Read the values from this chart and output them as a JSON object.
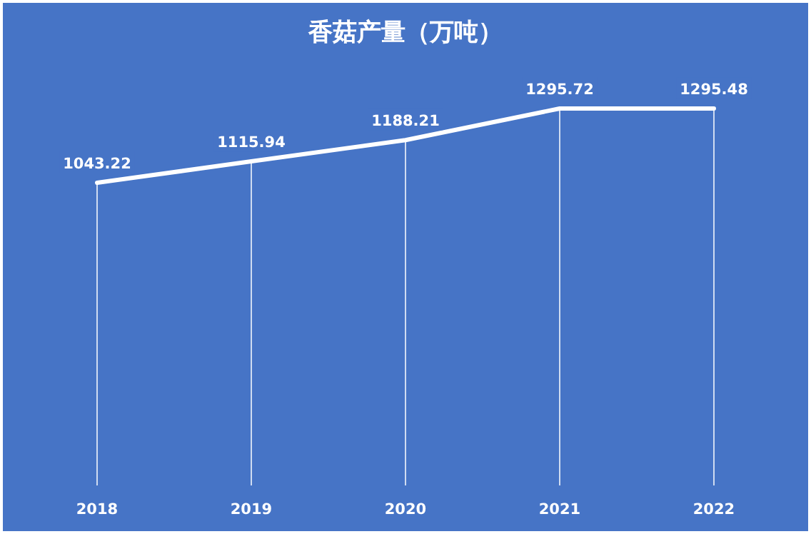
{
  "chart_data": {
    "type": "line",
    "title": "香菇产量（万吨）",
    "categories": [
      "2018",
      "2019",
      "2020",
      "2021",
      "2022"
    ],
    "values": [
      1043.22,
      1115.94,
      1188.21,
      1295.72,
      1295.48
    ],
    "color": "#ffffff",
    "data_labels": true,
    "grid": "x"
  }
}
